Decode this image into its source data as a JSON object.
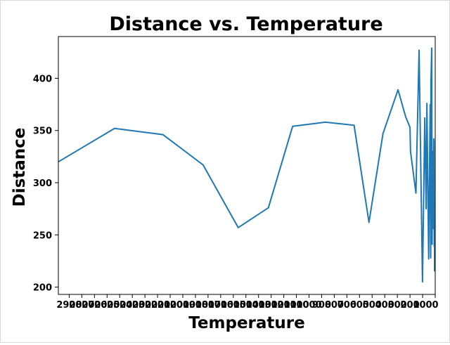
{
  "chart_data": {
    "type": "line",
    "title": "Distance vs. Temperature",
    "xlabel": "Temperature",
    "ylabel": "Distance",
    "x_reversed": true,
    "xlim": [
      2986,
      0
    ],
    "ylim": [
      193,
      440
    ],
    "yticks": [
      200,
      250,
      300,
      350,
      400
    ],
    "ytick_labels": [
      "200",
      "250",
      "300",
      "350",
      "400"
    ],
    "xticks": [
      2900,
      2800,
      2700,
      2600,
      2500,
      2400,
      2300,
      2200,
      2100,
      2000,
      1900,
      1800,
      1700,
      1600,
      1500,
      1400,
      1300,
      1200,
      1100,
      1000,
      900,
      800,
      700,
      600,
      500,
      400,
      300,
      200,
      100,
      0
    ],
    "xtick_labels": [
      "2900",
      "2800",
      "2700",
      "2600",
      "2500",
      "2400",
      "2300",
      "2200",
      "2100",
      "2000",
      "1900",
      "1800",
      "1700",
      "1600",
      "1500",
      "1400",
      "1300",
      "1200",
      "1100",
      "1000",
      "900",
      "800",
      "700",
      "600",
      "500",
      "400",
      "300",
      "200",
      "100",
      "0"
    ],
    "grid": false,
    "series": [
      {
        "color": "#1f77b4",
        "x": [
          2986,
          2541,
          2157,
          1839,
          1561,
          1322,
          1130,
          870,
          643,
          525,
          414,
          295,
          234,
          200,
          196,
          153,
          128,
          101,
          83,
          72,
          66,
          52,
          40,
          36,
          34,
          28,
          25,
          22,
          18,
          16,
          12,
          10,
          8,
          6,
          5
        ],
        "y": [
          320,
          352,
          346,
          317,
          257,
          276,
          354,
          358,
          355,
          262,
          347,
          389,
          363,
          353,
          330,
          290,
          427,
          205,
          362,
          275,
          376,
          227,
          375,
          228,
          395,
          429,
          241,
          322,
          330,
          256,
          342,
          340,
          239,
          255,
          215
        ]
      }
    ]
  }
}
